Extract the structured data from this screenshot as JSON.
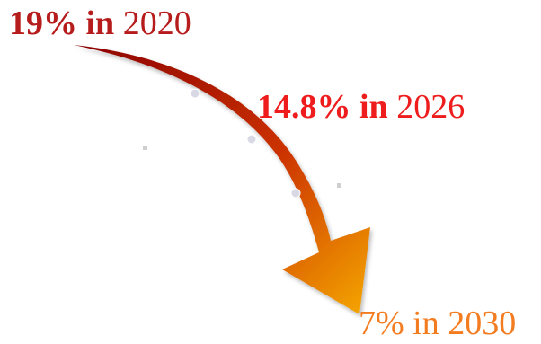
{
  "milestones": [
    {
      "id": "2020",
      "percent": "19%",
      "in_word": "in",
      "year": "2020",
      "color": "#b71c1c"
    },
    {
      "id": "2026",
      "percent": "14.8%",
      "in_word": "in",
      "year": "2026",
      "color": "#ee1c1c"
    },
    {
      "id": "2030",
      "percent": "7%",
      "in_word": "in",
      "year": "2030",
      "color": "#f47c20"
    }
  ],
  "arrow": {
    "gradient_start": "#8b0000",
    "gradient_mid": "#cc3300",
    "gradient_end": "#f5a800",
    "marker_color": "#d9d9e6"
  }
}
